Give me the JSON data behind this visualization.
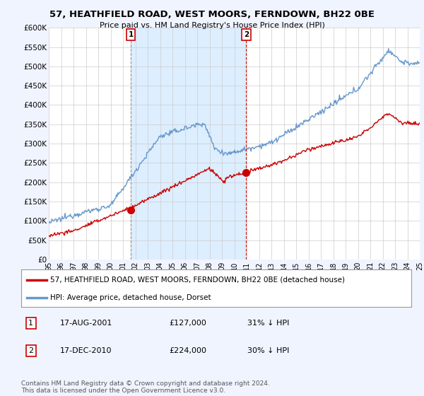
{
  "title": "57, HEATHFIELD ROAD, WEST MOORS, FERNDOWN, BH22 0BE",
  "subtitle": "Price paid vs. HM Land Registry's House Price Index (HPI)",
  "ylabel_ticks": [
    "£0",
    "£50K",
    "£100K",
    "£150K",
    "£200K",
    "£250K",
    "£300K",
    "£350K",
    "£400K",
    "£450K",
    "£500K",
    "£550K",
    "£600K"
  ],
  "ytick_values": [
    0,
    50000,
    100000,
    150000,
    200000,
    250000,
    300000,
    350000,
    400000,
    450000,
    500000,
    550000,
    600000
  ],
  "ylim": [
    0,
    600000
  ],
  "background_color": "#f0f4ff",
  "plot_bg_color": "#ffffff",
  "red_line_color": "#cc0000",
  "blue_line_color": "#6699cc",
  "shade_color": "#ddeeff",
  "sale1_year": 2001.63,
  "sale1_price": 127000,
  "sale1_label": "1",
  "sale2_year": 2010.96,
  "sale2_price": 224000,
  "sale2_label": "2",
  "legend_red_label": "57, HEATHFIELD ROAD, WEST MOORS, FERNDOWN, BH22 0BE (detached house)",
  "legend_blue_label": "HPI: Average price, detached house, Dorset",
  "table_row1": [
    "1",
    "17-AUG-2001",
    "£127,000",
    "31% ↓ HPI"
  ],
  "table_row2": [
    "2",
    "17-DEC-2010",
    "£224,000",
    "30% ↓ HPI"
  ],
  "footnote": "Contains HM Land Registry data © Crown copyright and database right 2024.\nThis data is licensed under the Open Government Licence v3.0.",
  "xmin": 1995,
  "xmax": 2025
}
